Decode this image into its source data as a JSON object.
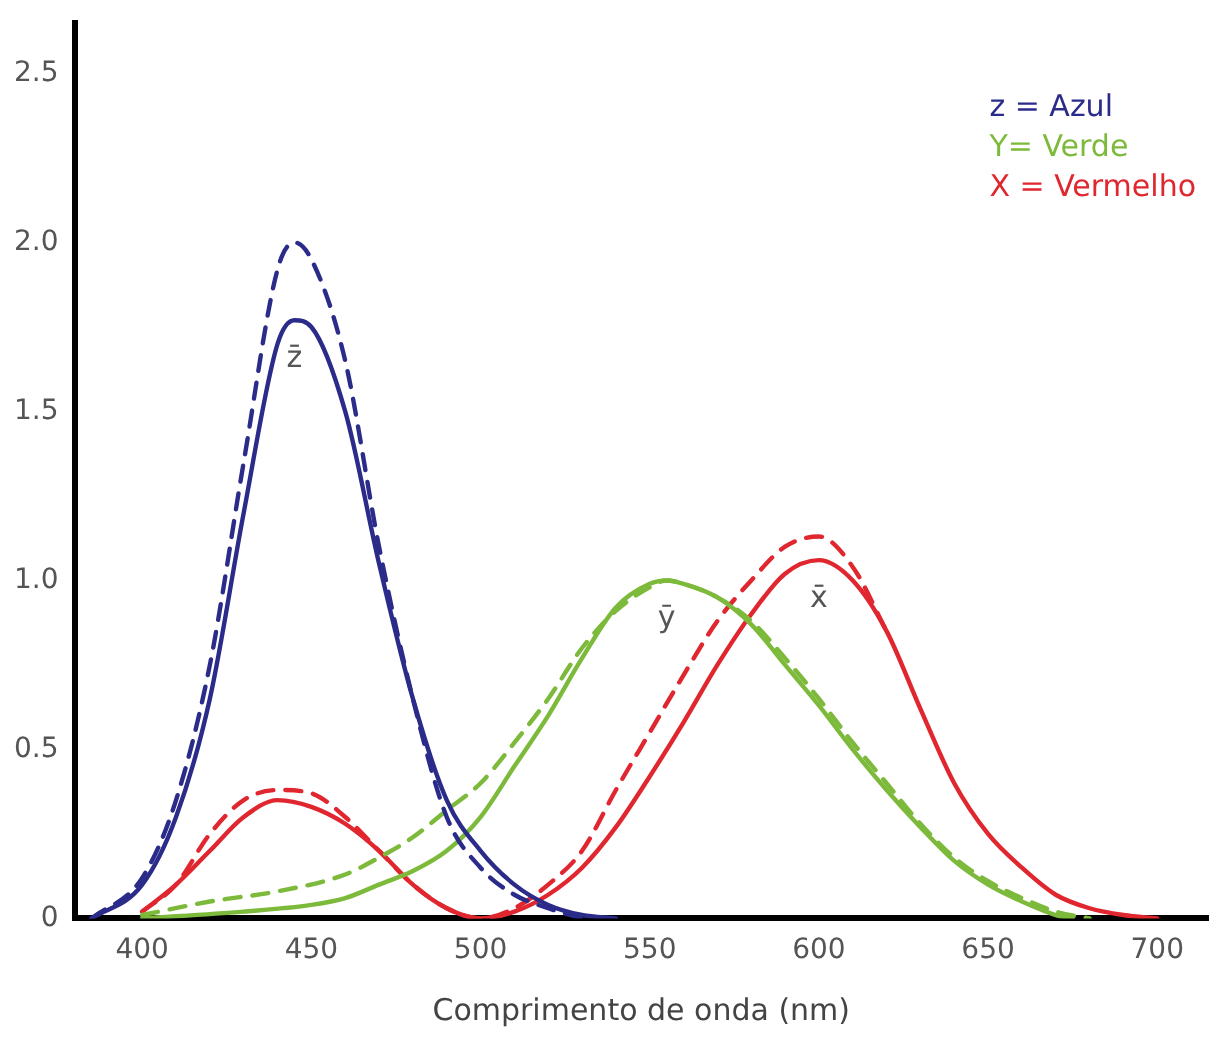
{
  "chart_data": {
    "type": "line",
    "xlabel": "Comprimento de onda (nm)",
    "xlim": [
      380,
      715
    ],
    "ylim": [
      0,
      2.65
    ],
    "xticks": [
      400,
      450,
      500,
      550,
      600,
      650,
      700
    ],
    "yticks": [
      {
        "value": 0,
        "label": "0"
      },
      {
        "value": 0.5,
        "label": "0.5"
      },
      {
        "value": 1,
        "label": "1.0"
      },
      {
        "value": 1.5,
        "label": "1.5"
      },
      {
        "value": 2,
        "label": "2.0"
      },
      {
        "value": 2.5,
        "label": "2.5"
      }
    ],
    "grid": false,
    "legend": "top right",
    "marker": "none",
    "series": [
      {
        "name": "z = Azul",
        "color": "#2b2b8a",
        "line_style": "solid",
        "x": [
          385,
          400,
          410,
          420,
          430,
          440,
          445,
          450,
          460,
          470,
          480,
          490,
          500,
          510,
          520,
          530,
          540
        ],
        "values": [
          0,
          0.1,
          0.3,
          0.65,
          1.2,
          1.7,
          1.77,
          1.75,
          1.5,
          1.05,
          0.65,
          0.35,
          0.2,
          0.1,
          0.04,
          0.01,
          0
        ]
      },
      {
        "color": "#2b2b8a",
        "line_style": "dashed",
        "x": [
          385,
          400,
          410,
          420,
          430,
          440,
          445,
          450,
          460,
          470,
          480,
          490,
          500,
          510,
          520,
          530
        ],
        "values": [
          0,
          0.12,
          0.35,
          0.75,
          1.35,
          1.92,
          2,
          1.95,
          1.65,
          1.1,
          0.65,
          0.3,
          0.15,
          0.07,
          0.03,
          0
        ]
      },
      {
        "name": "Y= Verde",
        "color": "#7dba3c",
        "line_style": "solid",
        "x": [
          400,
          430,
          450,
          460,
          470,
          480,
          490,
          500,
          510,
          520,
          530,
          540,
          550,
          555,
          560,
          570,
          580,
          590,
          600,
          610,
          620,
          630,
          640,
          650,
          660,
          670,
          675
        ],
        "values": [
          0,
          0.02,
          0.04,
          0.06,
          0.1,
          0.14,
          0.2,
          0.3,
          0.45,
          0.6,
          0.77,
          0.92,
          0.99,
          1,
          0.99,
          0.95,
          0.87,
          0.75,
          0.63,
          0.5,
          0.38,
          0.27,
          0.17,
          0.1,
          0.05,
          0.01,
          0
        ]
      },
      {
        "color": "#7dba3c",
        "line_style": "dashed",
        "x": [
          400,
          420,
          440,
          460,
          470,
          480,
          490,
          500,
          510,
          520,
          530,
          540,
          550,
          555,
          560,
          570,
          580,
          590,
          600,
          610,
          620,
          630,
          640,
          650,
          660,
          670,
          680
        ],
        "values": [
          0.01,
          0.05,
          0.08,
          0.13,
          0.18,
          0.24,
          0.32,
          0.4,
          0.52,
          0.65,
          0.8,
          0.91,
          0.98,
          1,
          0.99,
          0.95,
          0.88,
          0.77,
          0.65,
          0.52,
          0.4,
          0.28,
          0.18,
          0.11,
          0.06,
          0.02,
          0
        ]
      },
      {
        "name": "X = Vermelho",
        "color": "#e0262e",
        "line_style": "solid",
        "x": [
          400,
          410,
          420,
          430,
          440,
          450,
          460,
          470,
          480,
          490,
          500,
          510,
          520,
          530,
          540,
          550,
          560,
          570,
          580,
          590,
          600,
          610,
          620,
          630,
          640,
          650,
          660,
          670,
          680,
          690,
          700
        ],
        "values": [
          0.02,
          0.1,
          0.2,
          0.3,
          0.35,
          0.33,
          0.28,
          0.2,
          0.1,
          0.03,
          0,
          0.02,
          0.07,
          0.15,
          0.27,
          0.42,
          0.58,
          0.75,
          0.9,
          1.02,
          1.06,
          1,
          0.85,
          0.62,
          0.4,
          0.25,
          0.15,
          0.07,
          0.03,
          0.01,
          0
        ]
      },
      {
        "color": "#e0262e",
        "line_style": "dashed",
        "x": [
          400,
          410,
          420,
          430,
          440,
          450,
          460,
          470,
          480,
          490,
          500,
          510,
          520,
          530,
          540,
          550,
          560,
          570,
          580,
          590,
          600,
          610,
          620
        ],
        "values": [
          0.02,
          0.1,
          0.25,
          0.35,
          0.38,
          0.37,
          0.3,
          0.2,
          0.1,
          0.03,
          0,
          0.03,
          0.1,
          0.2,
          0.38,
          0.55,
          0.72,
          0.88,
          1,
          1.1,
          1.13,
          1.04,
          0.85
        ]
      }
    ],
    "annotations": [
      "z̄",
      "ȳ",
      "x̄"
    ]
  }
}
